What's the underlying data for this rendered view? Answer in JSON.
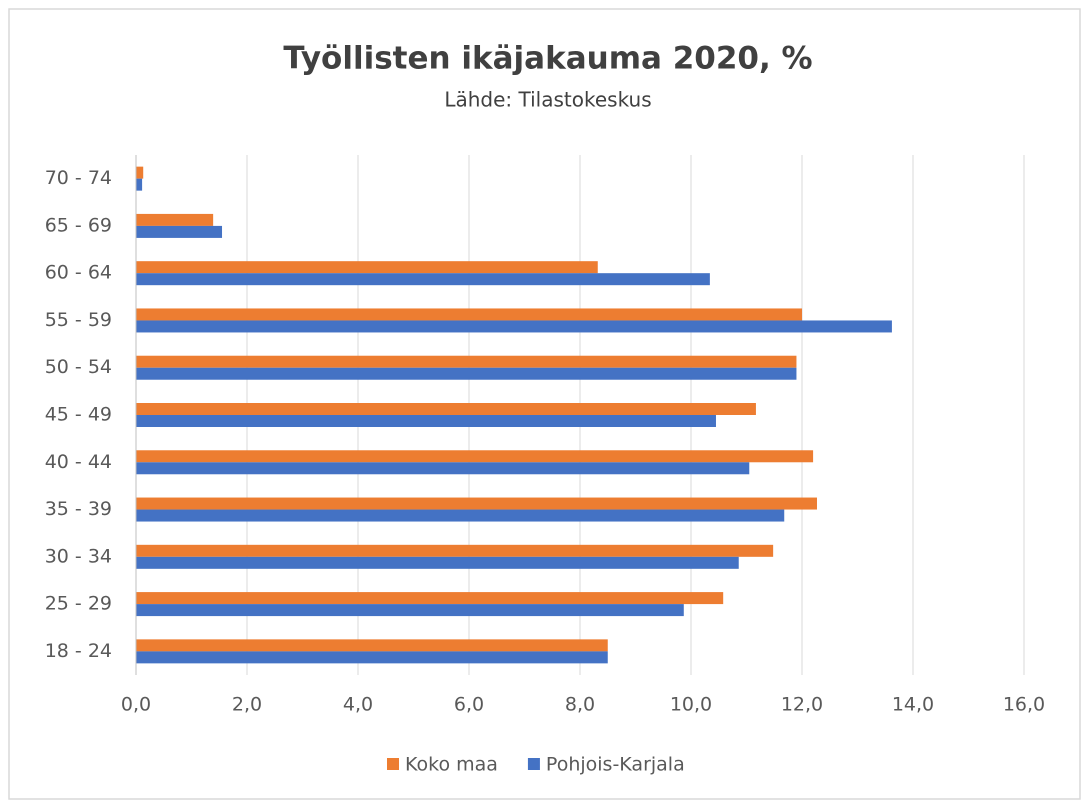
{
  "chart_data": {
    "type": "hbar",
    "title": "Työllisten ikäjakauma 2020, %",
    "subtitle": "Lähde: Tilastokeskus",
    "categories": [
      "18 - 24",
      "25 - 29",
      "30 - 34",
      "35 - 39",
      "40 - 44",
      "45 - 49",
      "50 - 54",
      "55 - 59",
      "60 - 64",
      "65 - 69",
      "70 - 74"
    ],
    "series": [
      {
        "name": "Koko maa",
        "color": "#ed7d31",
        "values": [
          8.5,
          10.58,
          11.48,
          12.27,
          12.2,
          11.17,
          11.9,
          12.0,
          8.32,
          1.39,
          0.13
        ]
      },
      {
        "name": "Pohjois-Karjala",
        "color": "#4472c4",
        "values": [
          8.5,
          9.87,
          10.86,
          11.68,
          11.05,
          10.45,
          11.9,
          13.62,
          10.34,
          1.55,
          0.11
        ]
      }
    ],
    "xlim": [
      0,
      16
    ],
    "xticks": [
      {
        "value": 0,
        "label": "0,0"
      },
      {
        "value": 2,
        "label": "2,0"
      },
      {
        "value": 4,
        "label": "4,0"
      },
      {
        "value": 6,
        "label": "6,0"
      },
      {
        "value": 8,
        "label": "8,0"
      },
      {
        "value": 10,
        "label": "10,0"
      },
      {
        "value": 12,
        "label": "12,0"
      },
      {
        "value": 14,
        "label": "14,0"
      },
      {
        "value": 16,
        "label": "16,0"
      }
    ],
    "grid": true,
    "legend": "bottom"
  }
}
